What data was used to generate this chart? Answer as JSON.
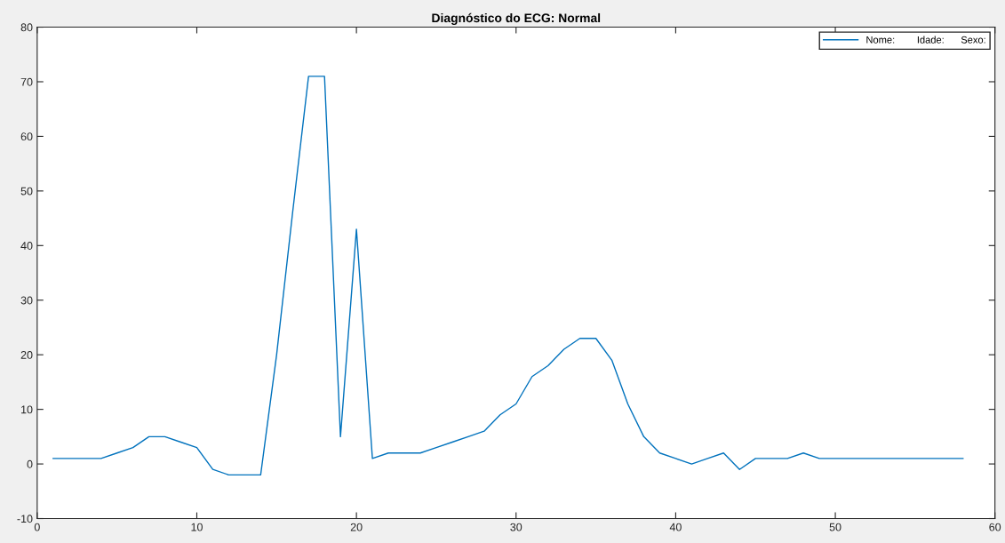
{
  "chart_data": {
    "type": "line",
    "title": "Diagnóstico do ECG: Normal",
    "x": [
      1,
      2,
      3,
      4,
      5,
      6,
      7,
      8,
      9,
      10,
      11,
      12,
      13,
      14,
      15,
      16,
      17,
      18,
      19,
      20,
      21,
      22,
      23,
      24,
      25,
      26,
      27,
      28,
      29,
      30,
      31,
      32,
      33,
      34,
      35,
      36,
      37,
      38,
      39,
      40,
      41,
      42,
      43,
      44,
      45,
      46,
      47,
      48,
      49,
      50,
      51,
      52,
      53,
      54,
      55,
      56,
      57,
      58
    ],
    "series": [
      {
        "name": "Nome:        Idade:      Sexo:",
        "color": "#0072bd",
        "values": [
          1,
          1,
          1,
          1,
          2,
          3,
          5,
          5,
          4,
          3,
          -1,
          -2,
          -2,
          -2,
          20,
          46,
          71,
          71,
          5,
          43,
          1,
          2,
          2,
          2,
          3,
          4,
          5,
          6,
          9,
          11,
          16,
          18,
          21,
          23,
          23,
          19,
          11,
          5,
          2,
          1,
          0,
          1,
          2,
          -1,
          1,
          1,
          1,
          2,
          1,
          1,
          1,
          1,
          1,
          1,
          1,
          1,
          1,
          1
        ]
      }
    ],
    "xlim": [
      0,
      60
    ],
    "xticks": [
      0,
      10,
      20,
      30,
      40,
      50,
      60
    ],
    "ylim": [
      -10,
      80
    ],
    "yticks": [
      -10,
      0,
      10,
      20,
      30,
      40,
      50,
      60,
      70,
      80
    ],
    "grid": false,
    "legend": "top right",
    "marker": "none",
    "line_style": "solid"
  }
}
